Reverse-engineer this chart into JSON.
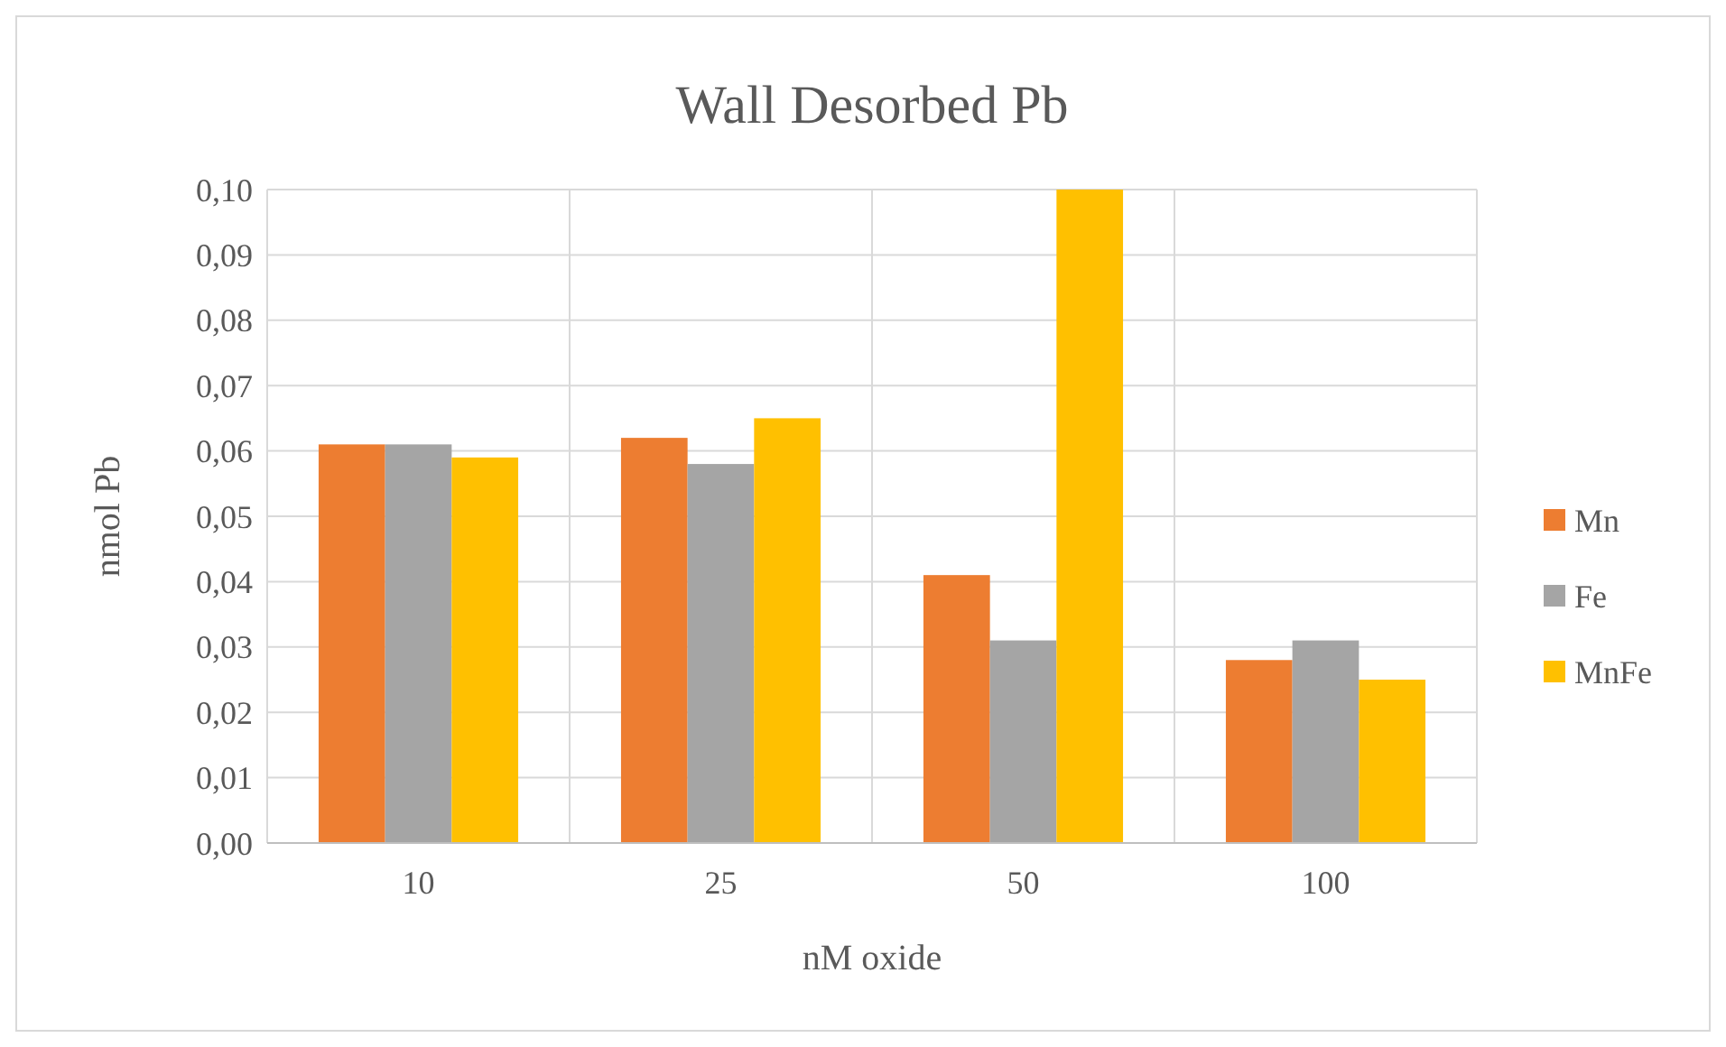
{
  "chart_data": {
    "type": "bar",
    "title": "Wall Desorbed Pb",
    "xlabel": "nM oxide",
    "ylabel": "nmol Pb",
    "categories": [
      "10",
      "25",
      "50",
      "100"
    ],
    "series": [
      {
        "name": "Mn",
        "color": "#ed7d31",
        "values": [
          0.061,
          0.062,
          0.041,
          0.028
        ]
      },
      {
        "name": "Fe",
        "color": "#a5a5a5",
        "values": [
          0.061,
          0.058,
          0.031,
          0.031
        ]
      },
      {
        "name": "MnFe",
        "color": "#ffc000",
        "values": [
          0.059,
          0.065,
          0.1,
          0.025
        ]
      }
    ],
    "ylim": [
      0,
      0.1
    ],
    "yticks": [
      {
        "value": 0,
        "label": "0,00"
      },
      {
        "value": 0.01,
        "label": "0,01"
      },
      {
        "value": 0.02,
        "label": "0,02"
      },
      {
        "value": 0.03,
        "label": "0,03"
      },
      {
        "value": 0.04,
        "label": "0,04"
      },
      {
        "value": 0.05,
        "label": "0,05"
      },
      {
        "value": 0.06,
        "label": "0,06"
      },
      {
        "value": 0.07,
        "label": "0,07"
      },
      {
        "value": 0.08,
        "label": "0,08"
      },
      {
        "value": 0.09,
        "label": "0,09"
      },
      {
        "value": 0.1,
        "label": "0,10"
      }
    ],
    "grid": true,
    "legend": "right"
  }
}
